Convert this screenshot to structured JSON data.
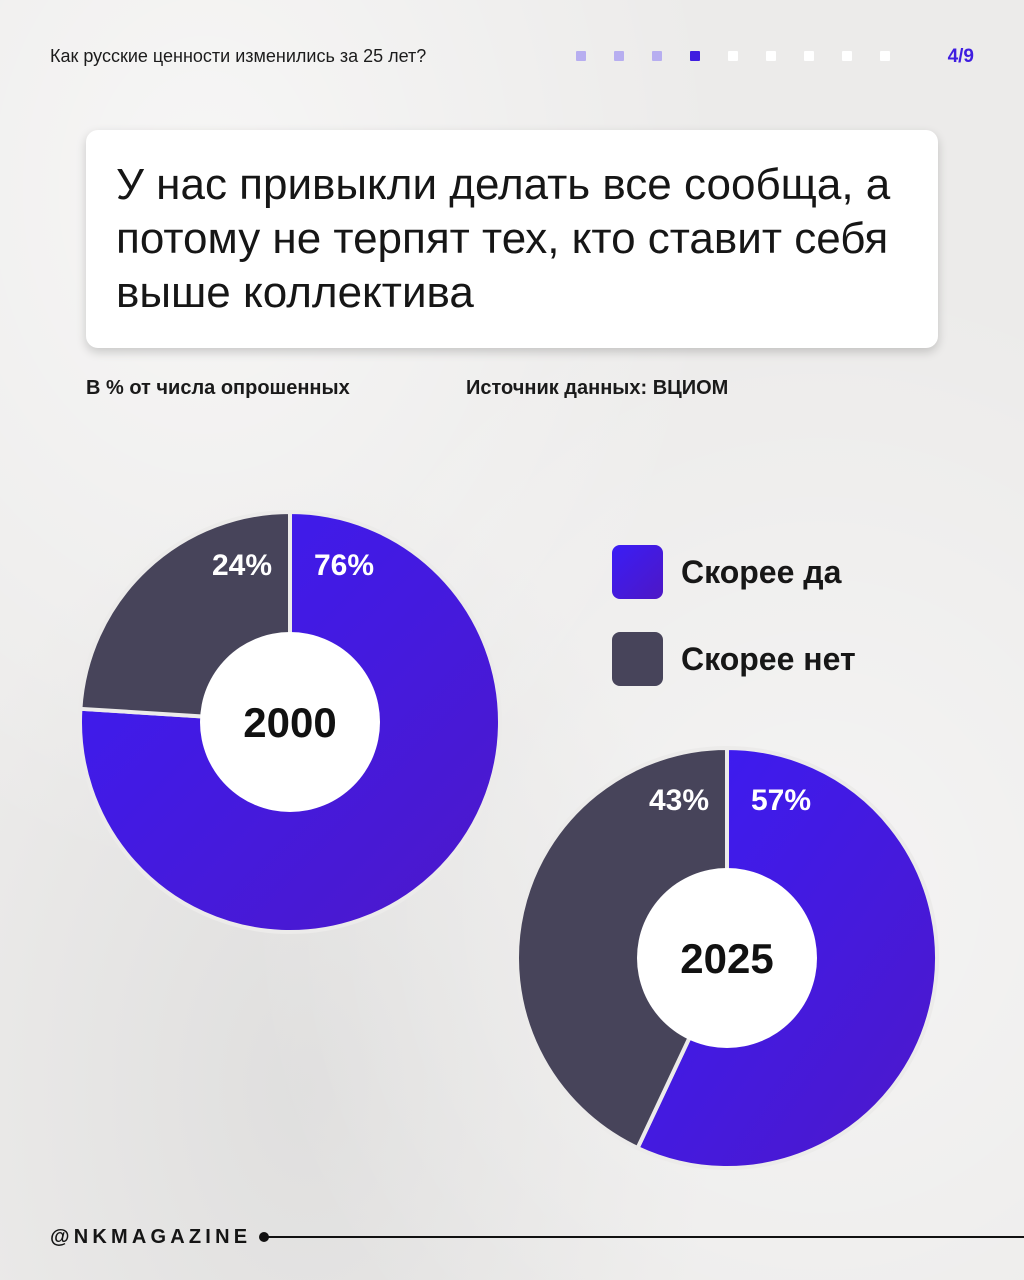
{
  "header": {
    "topic": "Как русские ценности изменились за 25 лет?",
    "page_indicator": "4/9",
    "progress": {
      "total": 9,
      "current": 4
    }
  },
  "card": {
    "title": "У нас привыкли делать все сообща, а потому не терпят тех, кто ставит себя выше коллектива"
  },
  "meta": {
    "unit_note": "В % от числа опрошенных",
    "source": "Источник данных: ВЦИОМ"
  },
  "legend": [
    {
      "label": "Скорее да",
      "color": "#3e16f0"
    },
    {
      "label": "Скорее нет",
      "color": "#47445a"
    }
  ],
  "chart_data": [
    {
      "type": "pie",
      "title": "2000",
      "categories": [
        "Скорее да",
        "Скорее нет"
      ],
      "values": [
        76,
        24
      ],
      "labels": [
        "76%",
        "24%"
      ],
      "colors": [
        "#3e16f0",
        "#47445a"
      ]
    },
    {
      "type": "pie",
      "title": "2025",
      "categories": [
        "Скорее да",
        "Скорее нет"
      ],
      "values": [
        57,
        43
      ],
      "labels": [
        "57%",
        "43%"
      ],
      "colors": [
        "#3e16f0",
        "#47445a"
      ]
    }
  ],
  "footer": {
    "handle": "@NKMAGAZINE"
  },
  "colors": {
    "accent": "#3f1de0",
    "yes_gradient_start": "#3b1cf5",
    "yes_gradient_end": "#4d18c9",
    "no": "#47445a",
    "background": "#ecebea"
  }
}
